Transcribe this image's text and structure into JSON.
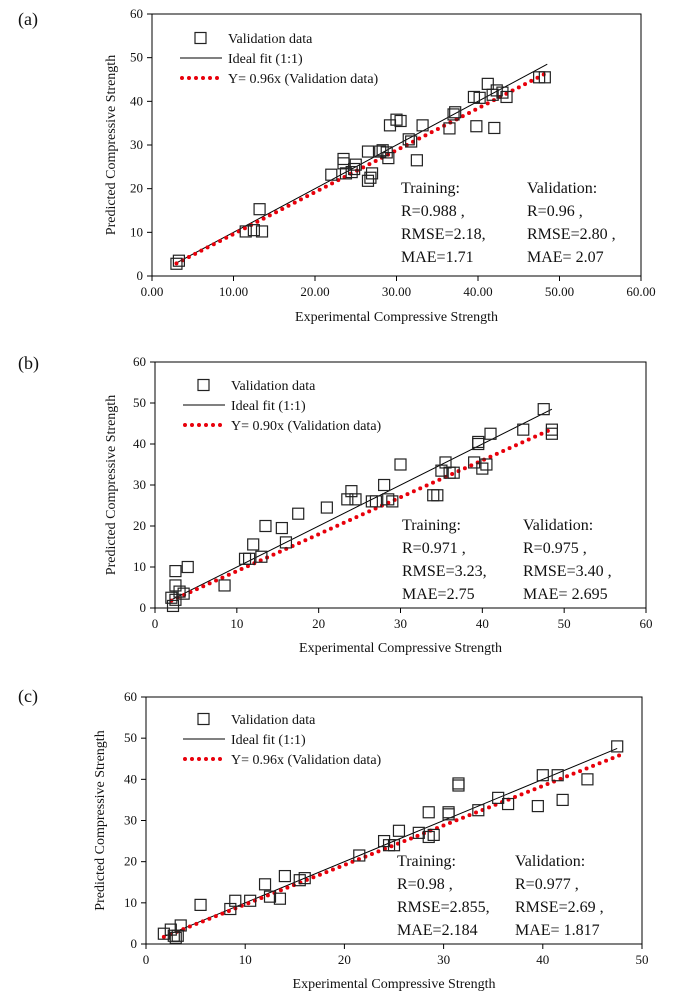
{
  "chart_data": [
    {
      "type": "scatter",
      "panel_label": "(a)",
      "xlabel": "Experimental  Compressive Strength",
      "ylabel": "Predicted Compressive Strength",
      "xlim": [
        0,
        60
      ],
      "ylim": [
        0,
        60
      ],
      "x_ticks": [
        "0.00",
        "10.00",
        "20.00",
        "30.00",
        "40.00",
        "50.00",
        "60.00"
      ],
      "y_ticks": [
        "0",
        "10",
        "20",
        "30",
        "40",
        "50",
        "60"
      ],
      "grid": false,
      "legend_position": "top-left",
      "legend": [
        "Validation data",
        "Ideal fit (1:1)",
        "Y= 0.96x (Validation data)"
      ],
      "series": [
        {
          "name": "Validation data",
          "marker": "square",
          "points": [
            [
              3.0,
              2.8
            ],
            [
              3.3,
              3.5
            ],
            [
              11.5,
              10.2
            ],
            [
              12.5,
              10.5
            ],
            [
              13.2,
              15.3
            ],
            [
              13.5,
              10.2
            ],
            [
              22.0,
              23.2
            ],
            [
              23.5,
              25.8
            ],
            [
              23.5,
              26.8
            ],
            [
              23.8,
              23.5
            ],
            [
              24.5,
              23.8
            ],
            [
              24.8,
              24.5
            ],
            [
              25.0,
              25.5
            ],
            [
              26.5,
              21.8
            ],
            [
              26.5,
              28.5
            ],
            [
              26.8,
              22.5
            ],
            [
              27.0,
              23.5
            ],
            [
              28.0,
              28.5
            ],
            [
              28.3,
              28.8
            ],
            [
              28.8,
              28.3
            ],
            [
              29.0,
              27.0
            ],
            [
              29.2,
              34.5
            ],
            [
              30.0,
              35.8
            ],
            [
              30.5,
              35.5
            ],
            [
              31.5,
              31.3
            ],
            [
              31.8,
              30.8
            ],
            [
              32.5,
              26.5
            ],
            [
              33.2,
              34.5
            ],
            [
              36.5,
              33.8
            ],
            [
              37.0,
              37.0
            ],
            [
              37.2,
              37.5
            ],
            [
              39.5,
              41.0
            ],
            [
              39.8,
              34.3
            ],
            [
              40.2,
              40.8
            ],
            [
              41.2,
              44.0
            ],
            [
              41.8,
              41.5
            ],
            [
              42.0,
              33.9
            ],
            [
              42.3,
              42.5
            ],
            [
              43.0,
              42.0
            ],
            [
              43.5,
              41.0
            ],
            [
              47.5,
              45.5
            ],
            [
              48.2,
              45.5
            ]
          ]
        },
        {
          "name": "Ideal fit (1:1)",
          "line": "solid",
          "color": "#000000",
          "slope": 1,
          "x_range": [
            3,
            48.5
          ]
        },
        {
          "name": "Y= 0.96x (Validation data)",
          "line": "dotted",
          "color": "#e8000b",
          "slope": 0.96,
          "x_range": [
            3,
            48.5
          ]
        }
      ],
      "annotations": [
        {
          "lines": [
            "Training:",
            "R=0.988 ,",
            "RMSE=2.18,",
            "MAE=1.71"
          ]
        },
        {
          "lines": [
            "Validation:",
            "R=0.96 ,",
            "RMSE=2.80 ,",
            "MAE= 2.07"
          ]
        }
      ]
    },
    {
      "type": "scatter",
      "panel_label": "(b)",
      "xlabel": "Experimental  Compressive Strength",
      "ylabel": "Predicted Compressive Strength",
      "xlim": [
        0,
        60
      ],
      "ylim": [
        0,
        60
      ],
      "x_ticks": [
        "0",
        "10",
        "20",
        "30",
        "40",
        "50",
        "60"
      ],
      "y_ticks": [
        "0",
        "10",
        "20",
        "30",
        "40",
        "50",
        "60"
      ],
      "grid": false,
      "legend_position": "top-left",
      "legend": [
        "Validation data",
        "Ideal fit (1:1)",
        "Y= 0.90x (Validation data)"
      ],
      "series": [
        {
          "name": "Validation data",
          "marker": "square",
          "points": [
            [
              2.0,
              2.5
            ],
            [
              2.2,
              0.5
            ],
            [
              2.5,
              9.0
            ],
            [
              2.5,
              5.5
            ],
            [
              2.5,
              2.0
            ],
            [
              3.0,
              4.0
            ],
            [
              3.5,
              3.5
            ],
            [
              4.0,
              10.0
            ],
            [
              8.5,
              5.5
            ],
            [
              11.0,
              12.0
            ],
            [
              11.5,
              12.0
            ],
            [
              12.0,
              15.5
            ],
            [
              13.0,
              12.5
            ],
            [
              13.5,
              20.0
            ],
            [
              15.5,
              19.5
            ],
            [
              16.0,
              16.0
            ],
            [
              17.5,
              23.0
            ],
            [
              21.0,
              24.5
            ],
            [
              23.5,
              26.5
            ],
            [
              24.0,
              28.5
            ],
            [
              24.5,
              26.5
            ],
            [
              26.5,
              26.0
            ],
            [
              27.0,
              26.0
            ],
            [
              28.0,
              30.0
            ],
            [
              28.5,
              26.5
            ],
            [
              29.0,
              26.0
            ],
            [
              30.0,
              35.0
            ],
            [
              34.0,
              27.5
            ],
            [
              34.5,
              27.5
            ],
            [
              35.0,
              33.5
            ],
            [
              35.5,
              35.5
            ],
            [
              36.0,
              33.0
            ],
            [
              36.5,
              33.0
            ],
            [
              39.0,
              35.5
            ],
            [
              39.5,
              40.0
            ],
            [
              39.5,
              40.5
            ],
            [
              40.0,
              34.0
            ],
            [
              40.5,
              35.0
            ],
            [
              41.0,
              42.5
            ],
            [
              45.0,
              43.5
            ],
            [
              47.5,
              48.5
            ],
            [
              48.5,
              43.5
            ],
            [
              48.5,
              42.5
            ]
          ]
        },
        {
          "name": "Ideal fit (1:1)",
          "line": "solid",
          "color": "#000000",
          "slope": 1,
          "x_range": [
            2,
            48.5
          ]
        },
        {
          "name": "Y= 0.90x (Validation data)",
          "line": "dotted",
          "color": "#e8000b",
          "slope": 0.9,
          "x_range": [
            2,
            48.5
          ]
        }
      ],
      "annotations": [
        {
          "lines": [
            "Training:",
            "R=0.971 ,",
            "RMSE=3.23,",
            "MAE=2.75"
          ]
        },
        {
          "lines": [
            "Validation:",
            "R=0.975 ,",
            "RMSE=3.40 ,",
            "MAE= 2.695"
          ]
        }
      ]
    },
    {
      "type": "scatter",
      "panel_label": "(c)",
      "xlabel": "Experimental  Compressive Strength",
      "ylabel": "Predicted Compressive Strength",
      "xlim": [
        0,
        50
      ],
      "ylim": [
        0,
        60
      ],
      "x_ticks": [
        "0",
        "10",
        "20",
        "30",
        "40",
        "50"
      ],
      "y_ticks": [
        "0",
        "10",
        "20",
        "30",
        "40",
        "50",
        "60"
      ],
      "grid": false,
      "legend_position": "top-left",
      "legend": [
        "Validation data",
        "Ideal fit (1:1)",
        "Y= 0.96x (Validation data)"
      ],
      "series": [
        {
          "name": "Validation data",
          "marker": "square",
          "points": [
            [
              1.8,
              2.5
            ],
            [
              2.5,
              3.5
            ],
            [
              2.8,
              2.0
            ],
            [
              3.0,
              1.5
            ],
            [
              3.2,
              2.0
            ],
            [
              3.5,
              4.5
            ],
            [
              5.5,
              9.5
            ],
            [
              8.5,
              8.5
            ],
            [
              9.0,
              10.5
            ],
            [
              10.5,
              10.5
            ],
            [
              12.0,
              14.5
            ],
            [
              12.5,
              11.5
            ],
            [
              13.5,
              11.0
            ],
            [
              14.0,
              16.5
            ],
            [
              15.5,
              15.5
            ],
            [
              16.0,
              16.0
            ],
            [
              21.5,
              21.5
            ],
            [
              24.0,
              25.0
            ],
            [
              24.5,
              24.0
            ],
            [
              25.0,
              24.0
            ],
            [
              25.5,
              27.5
            ],
            [
              27.5,
              27.0
            ],
            [
              28.5,
              32.0
            ],
            [
              28.5,
              26.0
            ],
            [
              29.0,
              26.5
            ],
            [
              30.5,
              32.0
            ],
            [
              30.5,
              31.5
            ],
            [
              31.5,
              38.5
            ],
            [
              31.5,
              39.0
            ],
            [
              33.5,
              32.5
            ],
            [
              35.5,
              35.5
            ],
            [
              36.5,
              34.0
            ],
            [
              39.5,
              33.5
            ],
            [
              40.0,
              41.0
            ],
            [
              41.5,
              41.0
            ],
            [
              42.0,
              35.0
            ],
            [
              44.5,
              40.0
            ],
            [
              47.5,
              48.0
            ]
          ]
        },
        {
          "name": "Ideal fit (1:1)",
          "line": "solid",
          "color": "#000000",
          "slope": 1,
          "x_range": [
            1.8,
            47.5
          ]
        },
        {
          "name": "Y= 0.96x (Validation data)",
          "line": "dotted",
          "color": "#e8000b",
          "slope": 0.96,
          "x_range": [
            1.8,
            48
          ]
        }
      ],
      "annotations": [
        {
          "lines": [
            "Training:",
            "R=0.98 ,",
            "RMSE=2.855,",
            "MAE=2.184"
          ]
        },
        {
          "lines": [
            "Validation:",
            "R=0.977 ,",
            "RMSE=2.69 ,",
            "MAE= 1.817"
          ]
        }
      ]
    }
  ]
}
